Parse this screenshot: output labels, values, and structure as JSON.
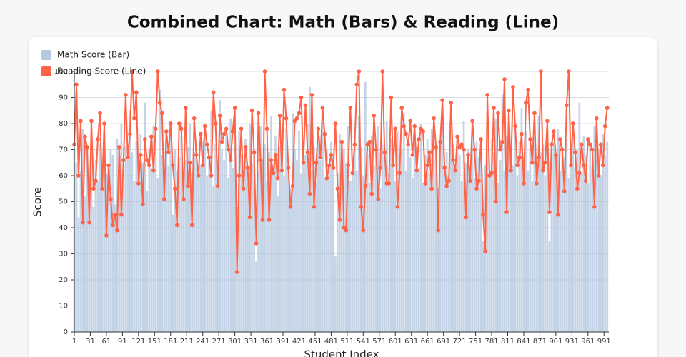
{
  "chart_data": {
    "type": "bar-line",
    "title": "Combined Chart: Math (Bars) & Reading (Line)",
    "x_label": "Student Index",
    "y_label": "Score",
    "xlim": [
      1,
      1000
    ],
    "xticks": [
      1,
      31,
      61,
      91,
      121,
      151,
      181,
      211,
      241,
      271,
      301,
      331,
      361,
      391,
      421,
      451,
      481,
      511,
      541,
      571,
      601,
      631,
      661,
      691,
      721,
      751,
      781,
      811,
      841,
      871,
      901,
      931,
      961,
      991
    ],
    "ylim": [
      0,
      100
    ],
    "yticks": [
      0,
      10,
      20,
      30,
      40,
      50,
      60,
      70,
      80,
      90,
      100
    ],
    "grid": true,
    "legend": "top-left",
    "x": [
      1,
      5,
      9,
      13,
      17,
      21,
      25,
      29,
      33,
      37,
      41,
      45,
      49,
      53,
      57,
      61,
      65,
      69,
      73,
      77,
      81,
      85,
      89,
      93,
      97,
      101,
      105,
      109,
      113,
      117,
      121,
      125,
      129,
      133,
      137,
      141,
      145,
      149,
      153,
      157,
      161,
      165,
      169,
      173,
      177,
      181,
      185,
      189,
      193,
      197,
      201,
      205,
      209,
      213,
      217,
      221,
      225,
      229,
      233,
      237,
      241,
      245,
      249,
      253,
      257,
      261,
      265,
      269,
      273,
      277,
      281,
      285,
      289,
      293,
      297,
      301,
      305,
      309,
      313,
      317,
      321,
      325,
      329,
      333,
      337,
      341,
      345,
      349,
      353,
      357,
      361,
      365,
      369,
      373,
      377,
      381,
      385,
      389,
      393,
      397,
      401,
      405,
      409,
      413,
      417,
      421,
      425,
      429,
      433,
      437,
      441,
      445,
      449,
      453,
      457,
      461,
      465,
      469,
      473,
      477,
      481,
      485,
      489,
      493,
      497,
      501,
      505,
      509,
      513,
      517,
      521,
      525,
      529,
      533,
      537,
      541,
      545,
      549,
      553,
      557,
      561,
      565,
      569,
      573,
      577,
      581,
      585,
      589,
      593,
      597,
      601,
      605,
      609,
      613,
      617,
      621,
      625,
      629,
      633,
      637,
      641,
      645,
      649,
      653,
      657,
      661,
      665,
      669,
      673,
      677,
      681,
      685,
      689,
      693,
      697,
      701,
      705,
      709,
      713,
      717,
      721,
      725,
      729,
      733,
      737,
      741,
      745,
      749,
      753,
      757,
      761,
      765,
      769,
      773,
      777,
      781,
      785,
      789,
      793,
      797,
      801,
      805,
      809,
      813,
      817,
      821,
      825,
      829,
      833,
      837,
      841,
      845,
      849,
      853,
      857,
      861,
      865,
      869,
      873,
      877,
      881,
      885,
      889,
      893,
      897,
      901,
      905,
      909,
      913,
      917,
      921,
      925,
      929,
      933,
      937,
      941,
      945,
      949,
      953,
      957,
      961,
      965,
      969,
      973,
      977,
      981,
      985,
      989,
      993,
      997
    ],
    "series": [
      {
        "name": "Math Score (Bar)",
        "kind": "bar",
        "color": "#b0c4de",
        "values": [
          70,
          65,
          44,
          62,
          78,
          52,
          70,
          60,
          75,
          48,
          66,
          58,
          72,
          63,
          77,
          61,
          55,
          70,
          68,
          49,
          74,
          62,
          80,
          57,
          71,
          66,
          85,
          69,
          58,
          73,
          60,
          76,
          65,
          88,
          54,
          70,
          63,
          79,
          72,
          59,
          93,
          68,
          57,
          74,
          64,
          81,
          45,
          70,
          62,
          67,
          75,
          58,
          66,
          71,
          80,
          52,
          69,
          74,
          61,
          64,
          73,
          78,
          60,
          68,
          85,
          56,
          72,
          64,
          89,
          70,
          66,
          75,
          59,
          82,
          63,
          71,
          48,
          77,
          68,
          61,
          74,
          57,
          80,
          65,
          70,
          27,
          62,
          79,
          66,
          72,
          58,
          69,
          83,
          64,
          75,
          52,
          71,
          67,
          60,
          78,
          63,
          55,
          84,
          70,
          66,
          77,
          61,
          73,
          68,
          80,
          94,
          62,
          71,
          57,
          75,
          66,
          82,
          59,
          70,
          64,
          73,
          68,
          29,
          61,
          76,
          54,
          70,
          65,
          79,
          58,
          67,
          74,
          62,
          83,
          71,
          60,
          96,
          68,
          57,
          75,
          64,
          70,
          79,
          55,
          72,
          66,
          81,
          61,
          74,
          69,
          58,
          77,
          65,
          70,
          84,
          62,
          73,
          67,
          59,
          76,
          71,
          63,
          80,
          57,
          68,
          74,
          61,
          78,
          66,
          70,
          55,
          73,
          86,
          64,
          69,
          60,
          77,
          72,
          62,
          75,
          68,
          58,
          81,
          65,
          70,
          63,
          76,
          59,
          73,
          67,
          71,
          35,
          64,
          78,
          60,
          74,
          69,
          82,
          57,
          66,
          91,
          62,
          75,
          68,
          71,
          64,
          79,
          60,
          73,
          86,
          67,
          77,
          62,
          70,
          58,
          75,
          64,
          83,
          69,
          72,
          60,
          76,
          35,
          68,
          73,
          65,
          78,
          62,
          71,
          67,
          74,
          59,
          66,
          81,
          63,
          70,
          88,
          61,
          75,
          68,
          57,
          72,
          64,
          79,
          66,
          70,
          60,
          76,
          68,
          73
        ]
      },
      {
        "name": "Reading Score (Line)",
        "kind": "line",
        "color": "#ff6347",
        "values": [
          72,
          95,
          60,
          81,
          42,
          75,
          71,
          42,
          81,
          55,
          58,
          74,
          84,
          55,
          80,
          37,
          64,
          51,
          41,
          45,
          39,
          71,
          45,
          66,
          91,
          67,
          76,
          100,
          82,
          92,
          57,
          68,
          49,
          74,
          66,
          64,
          75,
          62,
          78,
          100,
          88,
          84,
          51,
          77,
          69,
          80,
          64,
          55,
          41,
          80,
          78,
          51,
          86,
          56,
          65,
          41,
          82,
          68,
          60,
          76,
          64,
          79,
          72,
          67,
          60,
          92,
          80,
          56,
          83,
          73,
          76,
          78,
          70,
          66,
          77,
          86,
          23,
          60,
          78,
          55,
          71,
          63,
          44,
          85,
          69,
          34,
          84,
          66,
          43,
          100,
          78,
          43,
          66,
          61,
          68,
          59,
          83,
          62,
          93,
          82,
          63,
          48,
          56,
          81,
          82,
          84,
          90,
          65,
          87,
          69,
          53,
          91,
          48,
          65,
          78,
          67,
          86,
          76,
          59,
          64,
          68,
          63,
          80,
          55,
          43,
          73,
          40,
          39,
          64,
          86,
          61,
          72,
          95,
          100,
          48,
          39,
          56,
          72,
          73,
          53,
          83,
          70,
          51,
          63,
          100,
          69,
          57,
          57,
          90,
          64,
          78,
          48,
          61,
          86,
          79,
          76,
          72,
          81,
          68,
          79,
          62,
          74,
          78,
          77,
          57,
          64,
          69,
          55,
          82,
          71,
          39,
          73,
          89,
          63,
          56,
          58,
          88,
          66,
          62,
          75,
          71,
          72,
          70,
          44,
          68,
          58,
          81,
          70,
          55,
          58,
          74,
          45,
          31,
          91,
          60,
          61,
          86,
          50,
          84,
          70,
          73,
          97,
          46,
          85,
          62,
          94,
          79,
          64,
          67,
          76,
          57,
          88,
          93,
          74,
          65,
          84,
          57,
          67,
          100,
          62,
          65,
          81,
          46,
          72,
          77,
          68,
          45,
          74,
          70,
          54,
          87,
          100,
          64,
          80,
          69,
          55,
          61,
          72,
          64,
          58,
          74,
          72,
          70,
          48,
          82,
          60,
          72,
          64,
          79,
          86
        ]
      }
    ]
  }
}
